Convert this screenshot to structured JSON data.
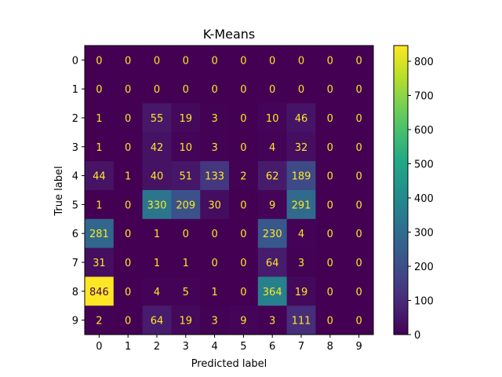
{
  "chart_data": {
    "type": "heatmap",
    "title": "K-Means",
    "xlabel": "Predicted label",
    "ylabel": "True label",
    "x_categories": [
      "0",
      "1",
      "2",
      "3",
      "4",
      "5",
      "6",
      "7",
      "8",
      "9"
    ],
    "y_categories": [
      "0",
      "1",
      "2",
      "3",
      "4",
      "5",
      "6",
      "7",
      "8",
      "9"
    ],
    "values": [
      [
        0,
        0,
        0,
        0,
        0,
        0,
        0,
        0,
        0,
        0
      ],
      [
        0,
        0,
        0,
        0,
        0,
        0,
        0,
        0,
        0,
        0
      ],
      [
        1,
        0,
        55,
        19,
        3,
        0,
        10,
        46,
        0,
        0
      ],
      [
        1,
        0,
        42,
        10,
        3,
        0,
        4,
        32,
        0,
        0
      ],
      [
        44,
        1,
        40,
        51,
        133,
        2,
        62,
        189,
        0,
        0
      ],
      [
        1,
        0,
        330,
        209,
        30,
        0,
        9,
        291,
        0,
        0
      ],
      [
        281,
        0,
        1,
        0,
        0,
        0,
        230,
        4,
        0,
        0
      ],
      [
        31,
        0,
        1,
        1,
        0,
        0,
        64,
        3,
        0,
        0
      ],
      [
        846,
        0,
        4,
        5,
        1,
        0,
        364,
        19,
        0,
        0
      ],
      [
        2,
        0,
        64,
        19,
        3,
        9,
        3,
        111,
        0,
        0
      ]
    ],
    "colormap": "viridis",
    "vmin": 0,
    "vmax": 846,
    "colorbar_ticks": [
      0,
      100,
      200,
      300,
      400,
      500,
      600,
      700,
      800
    ],
    "grid": false
  }
}
